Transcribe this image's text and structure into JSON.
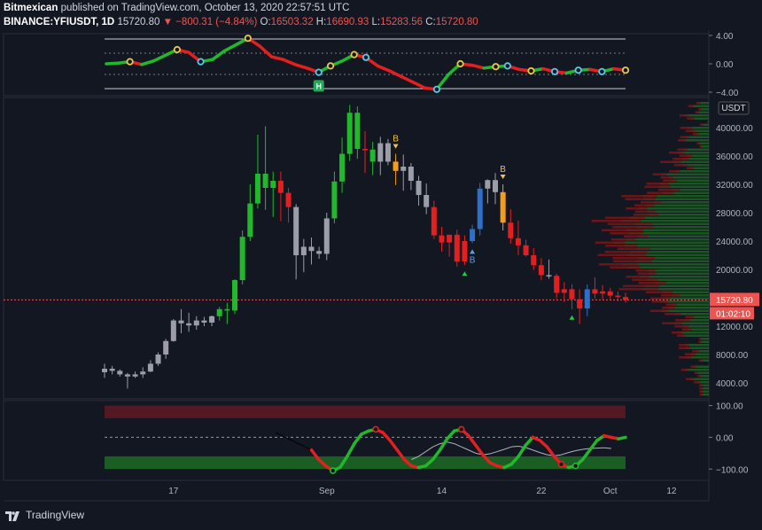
{
  "header": {
    "author": "Bitmexican",
    "published_text": "published on TradingView.com, October 13, 2020 22:57:51 UTC",
    "symbol": "BINANCE:YFIUSDT, 1D",
    "last": "15720.80",
    "change": "−800.31 (−4.84%)",
    "o_label": "O:",
    "o_value": "16503.32",
    "h_label": "H:",
    "h_value": "16690.93",
    "l_label": "L:",
    "l_value": "15283.56",
    "c_label": "C:",
    "c_value": "15720.80"
  },
  "footer": {
    "brand": "TradingView"
  },
  "colors": {
    "bg": "#131722",
    "up": "#21b82b",
    "down": "#e41f1f",
    "neutral": "#9b9ea6",
    "blue": "#2e6fc7",
    "orange": "#f39c1f",
    "price_line": "#ef5350"
  },
  "chart_data": [
    {
      "type": "line",
      "panel": "oscillator-top",
      "yticks": [
        "4.00",
        "0.00",
        "−4.00"
      ],
      "ylim": [
        -4,
        4
      ],
      "series": [
        {
          "values": [
            0,
            0.1,
            0.3,
            -0.1,
            0.4,
            1.2,
            2.0,
            1.6,
            0.3,
            0.6,
            1.8,
            2.7,
            3.6,
            2.5,
            1.0,
            0.6,
            -0.1,
            -0.6,
            -1.2,
            -0.3,
            0.4,
            1.3,
            0.9,
            -0.3,
            -1.0,
            -1.8,
            -2.6,
            -3.4,
            -3.6,
            -1.5,
            0.0,
            -0.2,
            -0.6,
            -0.4,
            -0.3,
            -0.8,
            -1.0,
            -0.7,
            -1.1,
            -1.3,
            -0.9,
            -0.8,
            -1.1,
            -0.7,
            -0.9
          ]
        }
      ]
    },
    {
      "type": "candlestick",
      "panel": "price",
      "ylabel": "USDT",
      "yticks": [
        "40000.00",
        "36000.00",
        "32000.00",
        "28000.00",
        "24000.00",
        "20000.00",
        "16000.00",
        "12000.00",
        "8000.00",
        "4000.00"
      ],
      "ylim": [
        2000,
        44000
      ],
      "xticks": [
        "17",
        "Sep",
        "14",
        "22",
        "Oct",
        "12"
      ],
      "last_price_label": "15720.80",
      "countdown_label": "01:02:10",
      "marker_labels": [
        "B",
        "B",
        "B"
      ],
      "series": [
        {
          "name": "ohlc",
          "values": [
            [
              5500,
              6700,
              4700,
              6000,
              "neutral"
            ],
            [
              6000,
              6400,
              5200,
              5700,
              "neutral"
            ],
            [
              5700,
              5900,
              4900,
              5200,
              "neutral"
            ],
            [
              5200,
              5400,
              3200,
              4900,
              "neutral"
            ],
            [
              4900,
              5600,
              4700,
              5200,
              "neutral"
            ],
            [
              5200,
              6200,
              4700,
              5600,
              "neutral"
            ],
            [
              5600,
              7200,
              5500,
              6700,
              "neutral"
            ],
            [
              6700,
              8300,
              6400,
              8000,
              "neutral"
            ],
            [
              8000,
              10200,
              7400,
              9900,
              "neutral"
            ],
            [
              9900,
              13000,
              9800,
              12800,
              "neutral"
            ],
            [
              12800,
              14400,
              11000,
              12400,
              "neutral"
            ],
            [
              12400,
              13900,
              11200,
              12100,
              "neutral"
            ],
            [
              12100,
              13400,
              11500,
              12800,
              "neutral"
            ],
            [
              12800,
              13300,
              12000,
              12500,
              "neutral"
            ],
            [
              12500,
              13500,
              12000,
              13400,
              "neutral"
            ],
            [
              13400,
              14700,
              12800,
              14400,
              "up"
            ],
            [
              14400,
              15300,
              12300,
              14200,
              "up"
            ],
            [
              14200,
              18600,
              13700,
              18500,
              "up"
            ],
            [
              18500,
              25500,
              17900,
              24600,
              "up"
            ],
            [
              24600,
              32000,
              24000,
              29300,
              "up"
            ],
            [
              29300,
              39000,
              28600,
              33500,
              "up"
            ],
            [
              33500,
              40200,
              28400,
              31500,
              "up"
            ],
            [
              31500,
              33800,
              27400,
              32500,
              "up"
            ],
            [
              32500,
              33800,
              26800,
              30800,
              "down"
            ],
            [
              30800,
              31500,
              26600,
              28800,
              "down"
            ],
            [
              28800,
              29200,
              18600,
              22000,
              "neutral"
            ],
            [
              22000,
              24300,
              19600,
              23200,
              "neutral"
            ],
            [
              23200,
              24500,
              20700,
              22600,
              "neutral"
            ],
            [
              22600,
              23200,
              21500,
              22200,
              "neutral"
            ],
            [
              22200,
              28000,
              21300,
              27200,
              "neutral"
            ],
            [
              27200,
              33800,
              26500,
              32400,
              "up"
            ],
            [
              32400,
              38600,
              30800,
              36300,
              "up"
            ],
            [
              36300,
              43200,
              35300,
              42100,
              "up"
            ],
            [
              42100,
              43000,
              35600,
              37000,
              "up"
            ],
            [
              37000,
              39500,
              33600,
              36900,
              "down"
            ],
            [
              36900,
              38000,
              33300,
              35200,
              "up"
            ],
            [
              35200,
              38700,
              33300,
              37800,
              "neutral"
            ],
            [
              37800,
              38400,
              34700,
              35200,
              "neutral"
            ],
            [
              35200,
              36300,
              31900,
              33900,
              "orange"
            ],
            [
              33900,
              36200,
              31100,
              34500,
              "neutral"
            ],
            [
              34500,
              35000,
              31200,
              32500,
              "neutral"
            ],
            [
              32500,
              33200,
              29000,
              30500,
              "neutral"
            ],
            [
              30500,
              32100,
              27800,
              28800,
              "neutral"
            ],
            [
              28800,
              29700,
              24300,
              24800,
              "down"
            ],
            [
              24800,
              26000,
              22500,
              23800,
              "down"
            ],
            [
              23800,
              24800,
              21800,
              24900,
              "down"
            ],
            [
              24900,
              25600,
              20400,
              21100,
              "down"
            ],
            [
              21100,
              24800,
              20600,
              24000,
              "down"
            ],
            [
              24000,
              26300,
              23700,
              25700,
              "blue"
            ],
            [
              25700,
              32200,
              24800,
              31400,
              "blue"
            ],
            [
              31400,
              32700,
              29300,
              32600,
              "neutral"
            ],
            [
              32600,
              33600,
              29200,
              30900,
              "neutral"
            ],
            [
              30900,
              32000,
              25500,
              26600,
              "orange"
            ],
            [
              26600,
              28500,
              23600,
              24400,
              "down"
            ],
            [
              24400,
              26900,
              22000,
              23400,
              "down"
            ],
            [
              23400,
              24200,
              21800,
              22000,
              "down"
            ],
            [
              22000,
              23000,
              19900,
              20600,
              "down"
            ],
            [
              20600,
              21600,
              18500,
              19200,
              "down"
            ],
            [
              19200,
              21400,
              18700,
              19100,
              "neutral"
            ],
            [
              19100,
              19400,
              15900,
              16700,
              "down"
            ],
            [
              16700,
              18200,
              15400,
              17200,
              "down"
            ],
            [
              17200,
              17900,
              14400,
              15800,
              "down"
            ],
            [
              15800,
              17200,
              12300,
              14500,
              "down"
            ],
            [
              14500,
              17900,
              13400,
              17200,
              "blue"
            ],
            [
              17200,
              18900,
              15900,
              16600,
              "down"
            ],
            [
              16600,
              17800,
              15700,
              16900,
              "down"
            ],
            [
              16900,
              17400,
              15800,
              16300,
              "down"
            ],
            [
              16300,
              16900,
              15500,
              16100,
              "down"
            ],
            [
              16100,
              16700,
              15300,
              15700,
              "down"
            ]
          ]
        }
      ]
    },
    {
      "type": "line",
      "panel": "oscillator-bottom",
      "yticks": [
        "100.00",
        "0.00",
        "−100.00"
      ],
      "ylim": [
        -130,
        110
      ],
      "series": [
        {
          "values": [
            null,
            null,
            null,
            null,
            null,
            null,
            null,
            null,
            null,
            null,
            null,
            null,
            null,
            null,
            null,
            null,
            null,
            null,
            null,
            null,
            null,
            null,
            null,
            null,
            null,
            null,
            null,
            null,
            null,
            -40,
            -70,
            -90,
            -105,
            -95,
            -60,
            -20,
            10,
            20,
            25,
            15,
            -10,
            -40,
            -70,
            -90,
            -95,
            -90,
            -70,
            -40,
            -5,
            20,
            25,
            5,
            -25,
            -55,
            -80,
            -90,
            -95,
            -85,
            -60,
            -25,
            0,
            -10,
            -30,
            -60,
            -85,
            -95,
            -90,
            -70,
            -40,
            -10,
            5,
            0,
            -5,
            0
          ]
        },
        {
          "values": [
            null,
            null,
            null,
            null,
            null,
            null,
            null,
            null,
            null,
            null,
            null,
            null,
            null,
            null,
            null,
            null,
            null,
            null,
            null,
            null,
            null,
            null,
            null,
            null,
            null,
            null,
            null,
            null,
            null,
            null,
            null,
            null,
            null,
            null,
            null,
            null,
            null,
            null,
            null,
            null,
            null,
            null,
            null,
            -70,
            -60,
            -45,
            -30,
            -20,
            -15,
            -20,
            -30,
            -40,
            -50,
            -55,
            -52,
            -45,
            -38,
            -30,
            -28,
            -32,
            -40,
            -48,
            -55,
            -58,
            -55,
            -48,
            -42,
            -38,
            -35,
            -34,
            -33,
            -35
          ]
        }
      ]
    }
  ]
}
